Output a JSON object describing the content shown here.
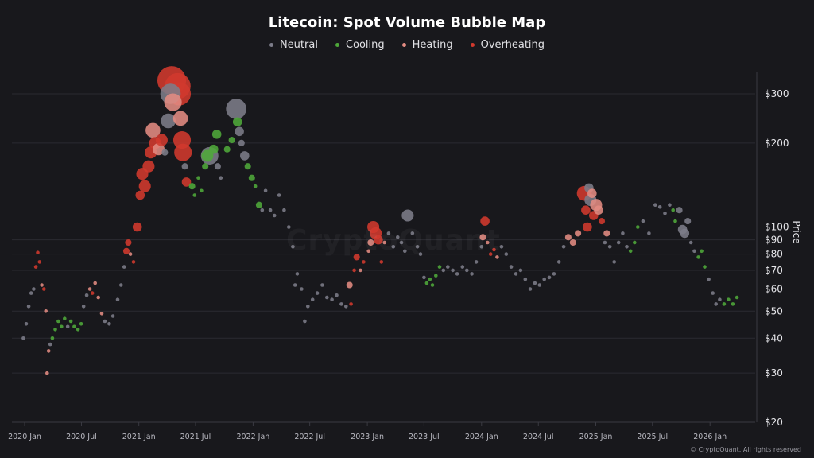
{
  "chart_data": {
    "type": "scatter",
    "title": "Litecoin: Spot Volume Bubble Map",
    "ylabel": "Price",
    "xlabel": "",
    "yscale": "log",
    "ylim": [
      20,
      360
    ],
    "xlim": [
      "2019-12-20",
      "2026-04-20"
    ],
    "grid": true,
    "legend_position": "top",
    "y_ticks": [
      {
        "value": 20,
        "label": "$20"
      },
      {
        "value": 30,
        "label": "$30"
      },
      {
        "value": 40,
        "label": "$40"
      },
      {
        "value": 50,
        "label": "$50"
      },
      {
        "value": 60,
        "label": "$60"
      },
      {
        "value": 70,
        "label": "$70"
      },
      {
        "value": 80,
        "label": "$80"
      },
      {
        "value": 90,
        "label": "$90"
      },
      {
        "value": 100,
        "label": "$100"
      },
      {
        "value": 200,
        "label": "$200"
      },
      {
        "value": 300,
        "label": "$300"
      }
    ],
    "x_ticks": [
      {
        "value": "2020-01-01",
        "label": "2020 Jan"
      },
      {
        "value": "2020-07-01",
        "label": "2020 Jul"
      },
      {
        "value": "2021-01-01",
        "label": "2021 Jan"
      },
      {
        "value": "2021-07-01",
        "label": "2021 Jul"
      },
      {
        "value": "2022-01-01",
        "label": "2022 Jan"
      },
      {
        "value": "2022-07-01",
        "label": "2022 Jul"
      },
      {
        "value": "2023-01-01",
        "label": "2023 Jan"
      },
      {
        "value": "2023-07-01",
        "label": "2023 Jul"
      },
      {
        "value": "2024-01-01",
        "label": "2024 Jan"
      },
      {
        "value": "2024-07-01",
        "label": "2024 Jul"
      },
      {
        "value": "2025-01-01",
        "label": "2025 Jan"
      },
      {
        "value": "2025-07-01",
        "label": "2025 Jul"
      },
      {
        "value": "2026-01-01",
        "label": "2026 Jan"
      }
    ],
    "categories": [
      {
        "key": "neutral",
        "name": "Neutral",
        "color": "#7c7c89"
      },
      {
        "key": "cooling",
        "name": "Cooling",
        "color": "#4ea83a"
      },
      {
        "key": "heating",
        "name": "Heating",
        "color": "#e28b82"
      },
      {
        "key": "overheating",
        "name": "Overheating",
        "color": "#d1392d"
      }
    ],
    "point_fields": [
      "date",
      "price",
      "relative_volume",
      "status"
    ],
    "points": [
      [
        "2019-12-28",
        40,
        1,
        "neutral"
      ],
      [
        "2020-01-06",
        45,
        1,
        "neutral"
      ],
      [
        "2020-01-14",
        52,
        1,
        "neutral"
      ],
      [
        "2020-01-22",
        58,
        1,
        "neutral"
      ],
      [
        "2020-01-30",
        60,
        1,
        "neutral"
      ],
      [
        "2020-02-06",
        72,
        1,
        "overheating"
      ],
      [
        "2020-02-12",
        81,
        1,
        "overheating"
      ],
      [
        "2020-02-18",
        75,
        1,
        "overheating"
      ],
      [
        "2020-02-25",
        62,
        1,
        "heating"
      ],
      [
        "2020-03-03",
        60,
        1,
        "overheating"
      ],
      [
        "2020-03-09",
        50,
        1,
        "heating"
      ],
      [
        "2020-03-13",
        30,
        1,
        "heating"
      ],
      [
        "2020-03-18",
        36,
        1,
        "heating"
      ],
      [
        "2020-03-23",
        38,
        1,
        "neutral"
      ],
      [
        "2020-03-30",
        40,
        1,
        "cooling"
      ],
      [
        "2020-04-08",
        43,
        1,
        "cooling"
      ],
      [
        "2020-04-18",
        46,
        1,
        "cooling"
      ],
      [
        "2020-04-28",
        44,
        1,
        "cooling"
      ],
      [
        "2020-05-08",
        47,
        1,
        "cooling"
      ],
      [
        "2020-05-18",
        44,
        1,
        "neutral"
      ],
      [
        "2020-05-28",
        46,
        1,
        "cooling"
      ],
      [
        "2020-06-08",
        44,
        1,
        "cooling"
      ],
      [
        "2020-06-20",
        43,
        1,
        "cooling"
      ],
      [
        "2020-06-30",
        45,
        1,
        "cooling"
      ],
      [
        "2020-07-08",
        52,
        1,
        "neutral"
      ],
      [
        "2020-07-18",
        57,
        1,
        "neutral"
      ],
      [
        "2020-07-28",
        60,
        1,
        "heating"
      ],
      [
        "2020-08-05",
        58,
        1,
        "overheating"
      ],
      [
        "2020-08-14",
        63,
        1,
        "heating"
      ],
      [
        "2020-08-24",
        56,
        1,
        "heating"
      ],
      [
        "2020-09-04",
        49,
        1,
        "heating"
      ],
      [
        "2020-09-14",
        46,
        1,
        "neutral"
      ],
      [
        "2020-09-28",
        45,
        1,
        "neutral"
      ],
      [
        "2020-10-10",
        48,
        1,
        "neutral"
      ],
      [
        "2020-10-25",
        55,
        1,
        "neutral"
      ],
      [
        "2020-11-05",
        62,
        1,
        "neutral"
      ],
      [
        "2020-11-15",
        72,
        1,
        "neutral"
      ],
      [
        "2020-11-22",
        82,
        2,
        "overheating"
      ],
      [
        "2020-11-28",
        88,
        2,
        "overheating"
      ],
      [
        "2020-12-05",
        80,
        1,
        "heating"
      ],
      [
        "2020-12-15",
        75,
        1,
        "overheating"
      ],
      [
        "2020-12-27",
        100,
        3,
        "overheating"
      ],
      [
        "2021-01-05",
        130,
        3,
        "overheating"
      ],
      [
        "2021-01-12",
        155,
        4,
        "overheating"
      ],
      [
        "2021-01-20",
        140,
        4,
        "overheating"
      ],
      [
        "2021-02-01",
        165,
        4,
        "overheating"
      ],
      [
        "2021-02-08",
        185,
        4,
        "overheating"
      ],
      [
        "2021-02-15",
        222,
        5,
        "heating"
      ],
      [
        "2021-02-22",
        200,
        4,
        "overheating"
      ],
      [
        "2021-03-05",
        190,
        4,
        "heating"
      ],
      [
        "2021-03-15",
        205,
        4,
        "overheating"
      ],
      [
        "2021-03-25",
        185,
        2,
        "neutral"
      ],
      [
        "2021-04-05",
        240,
        5,
        "neutral"
      ],
      [
        "2021-04-12",
        300,
        7,
        "neutral"
      ],
      [
        "2021-04-16",
        335,
        10,
        "overheating"
      ],
      [
        "2021-04-20",
        280,
        6,
        "heating"
      ],
      [
        "2021-05-05",
        320,
        9,
        "overheating"
      ],
      [
        "2021-05-10",
        300,
        8,
        "overheating"
      ],
      [
        "2021-05-14",
        245,
        5,
        "heating"
      ],
      [
        "2021-05-19",
        205,
        6,
        "overheating"
      ],
      [
        "2021-05-22",
        185,
        6,
        "overheating"
      ],
      [
        "2021-05-28",
        165,
        2,
        "neutral"
      ],
      [
        "2021-06-02",
        145,
        3,
        "overheating"
      ],
      [
        "2021-06-20",
        140,
        2,
        "cooling"
      ],
      [
        "2021-06-28",
        130,
        1,
        "cooling"
      ],
      [
        "2021-07-10",
        150,
        1,
        "cooling"
      ],
      [
        "2021-07-20",
        135,
        1,
        "cooling"
      ],
      [
        "2021-08-01",
        165,
        2,
        "cooling"
      ],
      [
        "2021-08-08",
        180,
        4,
        "cooling"
      ],
      [
        "2021-08-15",
        180,
        6,
        "neutral"
      ],
      [
        "2021-08-28",
        190,
        3,
        "cooling"
      ],
      [
        "2021-09-07",
        215,
        3,
        "cooling"
      ],
      [
        "2021-09-10",
        165,
        2,
        "neutral"
      ],
      [
        "2021-09-20",
        150,
        1,
        "neutral"
      ],
      [
        "2021-10-10",
        190,
        2,
        "cooling"
      ],
      [
        "2021-10-25",
        205,
        2,
        "cooling"
      ],
      [
        "2021-11-08",
        265,
        7,
        "neutral"
      ],
      [
        "2021-11-12",
        238,
        3,
        "cooling"
      ],
      [
        "2021-11-18",
        220,
        3,
        "neutral"
      ],
      [
        "2021-11-25",
        200,
        2,
        "neutral"
      ],
      [
        "2021-12-05",
        180,
        3,
        "neutral"
      ],
      [
        "2021-12-15",
        165,
        2,
        "cooling"
      ],
      [
        "2021-12-28",
        150,
        2,
        "cooling"
      ],
      [
        "2022-01-08",
        140,
        1,
        "cooling"
      ],
      [
        "2022-01-20",
        120,
        2,
        "cooling"
      ],
      [
        "2022-01-30",
        115,
        1,
        "neutral"
      ],
      [
        "2022-02-10",
        135,
        1,
        "neutral"
      ],
      [
        "2022-02-25",
        115,
        1,
        "neutral"
      ],
      [
        "2022-03-10",
        110,
        1,
        "neutral"
      ],
      [
        "2022-03-25",
        130,
        1,
        "neutral"
      ],
      [
        "2022-04-10",
        115,
        1,
        "neutral"
      ],
      [
        "2022-04-25",
        100,
        1,
        "neutral"
      ],
      [
        "2022-05-08",
        85,
        1,
        "neutral"
      ],
      [
        "2022-05-15",
        62,
        1,
        "neutral"
      ],
      [
        "2022-05-22",
        68,
        1,
        "neutral"
      ],
      [
        "2022-06-05",
        60,
        1,
        "neutral"
      ],
      [
        "2022-06-15",
        46,
        1,
        "neutral"
      ],
      [
        "2022-06-25",
        52,
        1,
        "neutral"
      ],
      [
        "2022-07-10",
        55,
        1,
        "neutral"
      ],
      [
        "2022-07-25",
        58,
        1,
        "neutral"
      ],
      [
        "2022-08-10",
        62,
        1,
        "neutral"
      ],
      [
        "2022-08-25",
        56,
        1,
        "neutral"
      ],
      [
        "2022-09-10",
        55,
        1,
        "neutral"
      ],
      [
        "2022-09-25",
        57,
        1,
        "neutral"
      ],
      [
        "2022-10-10",
        53,
        1,
        "neutral"
      ],
      [
        "2022-10-25",
        52,
        1,
        "neutral"
      ],
      [
        "2022-11-05",
        62,
        2,
        "heating"
      ],
      [
        "2022-11-10",
        53,
        1,
        "overheating"
      ],
      [
        "2022-11-20",
        70,
        1,
        "overheating"
      ],
      [
        "2022-11-28",
        78,
        2,
        "overheating"
      ],
      [
        "2022-12-10",
        70,
        1,
        "heating"
      ],
      [
        "2022-12-20",
        75,
        1,
        "overheating"
      ],
      [
        "2023-01-05",
        82,
        1,
        "heating"
      ],
      [
        "2023-01-12",
        88,
        2,
        "heating"
      ],
      [
        "2023-01-20",
        100,
        4,
        "overheating"
      ],
      [
        "2023-01-28",
        95,
        4,
        "overheating"
      ],
      [
        "2023-02-05",
        90,
        3,
        "overheating"
      ],
      [
        "2023-02-15",
        75,
        1,
        "overheating"
      ],
      [
        "2023-02-25",
        88,
        1,
        "heating"
      ],
      [
        "2023-03-10",
        95,
        1,
        "neutral"
      ],
      [
        "2023-03-25",
        85,
        1,
        "neutral"
      ],
      [
        "2023-04-08",
        92,
        1,
        "neutral"
      ],
      [
        "2023-04-20",
        88,
        1,
        "neutral"
      ],
      [
        "2023-05-01",
        82,
        1,
        "neutral"
      ],
      [
        "2023-05-10",
        110,
        4,
        "neutral"
      ],
      [
        "2023-05-25",
        95,
        1,
        "neutral"
      ],
      [
        "2023-06-10",
        85,
        1,
        "neutral"
      ],
      [
        "2023-06-20",
        80,
        1,
        "neutral"
      ],
      [
        "2023-07-01",
        66,
        1,
        "neutral"
      ],
      [
        "2023-07-10",
        63,
        1,
        "cooling"
      ],
      [
        "2023-07-20",
        65,
        1,
        "cooling"
      ],
      [
        "2023-07-28",
        62,
        1,
        "cooling"
      ],
      [
        "2023-08-08",
        67,
        1,
        "cooling"
      ],
      [
        "2023-08-20",
        72,
        1,
        "cooling"
      ],
      [
        "2023-09-01",
        70,
        1,
        "neutral"
      ],
      [
        "2023-09-15",
        72,
        1,
        "neutral"
      ],
      [
        "2023-10-01",
        70,
        1,
        "neutral"
      ],
      [
        "2023-10-15",
        68,
        1,
        "neutral"
      ],
      [
        "2023-11-01",
        72,
        1,
        "neutral"
      ],
      [
        "2023-11-15",
        70,
        1,
        "neutral"
      ],
      [
        "2023-12-01",
        68,
        1,
        "neutral"
      ],
      [
        "2023-12-15",
        75,
        1,
        "neutral"
      ],
      [
        "2024-01-01",
        85,
        1,
        "neutral"
      ],
      [
        "2024-01-05",
        92,
        2,
        "heating"
      ],
      [
        "2024-01-12",
        105,
        3,
        "overheating"
      ],
      [
        "2024-01-20",
        88,
        1,
        "heating"
      ],
      [
        "2024-01-30",
        80,
        1,
        "overheating"
      ],
      [
        "2024-02-10",
        83,
        1,
        "overheating"
      ],
      [
        "2024-02-20",
        78,
        1,
        "heating"
      ],
      [
        "2024-03-05",
        85,
        1,
        "neutral"
      ],
      [
        "2024-03-20",
        80,
        1,
        "neutral"
      ],
      [
        "2024-04-05",
        72,
        1,
        "neutral"
      ],
      [
        "2024-04-20",
        68,
        1,
        "neutral"
      ],
      [
        "2024-05-05",
        70,
        1,
        "neutral"
      ],
      [
        "2024-05-20",
        65,
        1,
        "neutral"
      ],
      [
        "2024-06-05",
        60,
        1,
        "neutral"
      ],
      [
        "2024-06-20",
        63,
        1,
        "neutral"
      ],
      [
        "2024-07-05",
        62,
        1,
        "neutral"
      ],
      [
        "2024-07-20",
        65,
        1,
        "neutral"
      ],
      [
        "2024-08-05",
        66,
        1,
        "neutral"
      ],
      [
        "2024-08-20",
        68,
        1,
        "neutral"
      ],
      [
        "2024-09-05",
        75,
        1,
        "neutral"
      ],
      [
        "2024-09-20",
        85,
        1,
        "neutral"
      ],
      [
        "2024-10-05",
        92,
        2,
        "heating"
      ],
      [
        "2024-10-20",
        88,
        2,
        "heating"
      ],
      [
        "2024-11-05",
        95,
        2,
        "heating"
      ],
      [
        "2024-11-25",
        132,
        5,
        "overheating"
      ],
      [
        "2024-11-30",
        115,
        3,
        "overheating"
      ],
      [
        "2024-12-05",
        100,
        3,
        "overheating"
      ],
      [
        "2024-12-10",
        138,
        3,
        "neutral"
      ],
      [
        "2024-12-15",
        125,
        4,
        "neutral"
      ],
      [
        "2024-12-20",
        132,
        3,
        "heating"
      ],
      [
        "2024-12-25",
        110,
        3,
        "overheating"
      ],
      [
        "2025-01-02",
        120,
        4,
        "heating"
      ],
      [
        "2025-01-10",
        115,
        3,
        "heating"
      ],
      [
        "2025-01-20",
        105,
        2,
        "overheating"
      ],
      [
        "2025-01-30",
        88,
        1,
        "neutral"
      ],
      [
        "2025-02-05",
        95,
        2,
        "heating"
      ],
      [
        "2025-02-15",
        85,
        1,
        "neutral"
      ],
      [
        "2025-03-01",
        75,
        1,
        "neutral"
      ],
      [
        "2025-03-15",
        88,
        1,
        "neutral"
      ],
      [
        "2025-03-28",
        95,
        1,
        "neutral"
      ],
      [
        "2025-04-10",
        85,
        1,
        "neutral"
      ],
      [
        "2025-04-22",
        82,
        1,
        "cooling"
      ],
      [
        "2025-05-05",
        88,
        1,
        "cooling"
      ],
      [
        "2025-05-15",
        100,
        1,
        "cooling"
      ],
      [
        "2025-06-01",
        105,
        1,
        "neutral"
      ],
      [
        "2025-06-20",
        95,
        1,
        "neutral"
      ],
      [
        "2025-07-10",
        120,
        1,
        "neutral"
      ],
      [
        "2025-07-25",
        118,
        1,
        "neutral"
      ],
      [
        "2025-08-10",
        112,
        1,
        "neutral"
      ],
      [
        "2025-08-25",
        120,
        1,
        "neutral"
      ],
      [
        "2025-09-05",
        115,
        1,
        "cooling"
      ],
      [
        "2025-09-12",
        105,
        1,
        "cooling"
      ],
      [
        "2025-09-25",
        115,
        2,
        "neutral"
      ],
      [
        "2025-10-05",
        98,
        3,
        "neutral"
      ],
      [
        "2025-10-12",
        95,
        3,
        "neutral"
      ],
      [
        "2025-10-22",
        105,
        2,
        "neutral"
      ],
      [
        "2025-11-01",
        88,
        1,
        "neutral"
      ],
      [
        "2025-11-12",
        82,
        1,
        "neutral"
      ],
      [
        "2025-11-25",
        78,
        1,
        "cooling"
      ],
      [
        "2025-12-05",
        82,
        1,
        "cooling"
      ],
      [
        "2025-12-15",
        72,
        1,
        "cooling"
      ],
      [
        "2025-12-28",
        65,
        1,
        "neutral"
      ],
      [
        "2026-01-10",
        58,
        1,
        "neutral"
      ],
      [
        "2026-01-20",
        53,
        1,
        "neutral"
      ],
      [
        "2026-02-01",
        55,
        1,
        "neutral"
      ],
      [
        "2026-02-15",
        53,
        1,
        "cooling"
      ],
      [
        "2026-03-01",
        55,
        1,
        "cooling"
      ],
      [
        "2026-03-15",
        53,
        1,
        "cooling"
      ],
      [
        "2026-03-28",
        56,
        1,
        "cooling"
      ]
    ]
  },
  "watermark": "CryptoQuant",
  "footer": "© CryptoQuant. All rights reserved"
}
